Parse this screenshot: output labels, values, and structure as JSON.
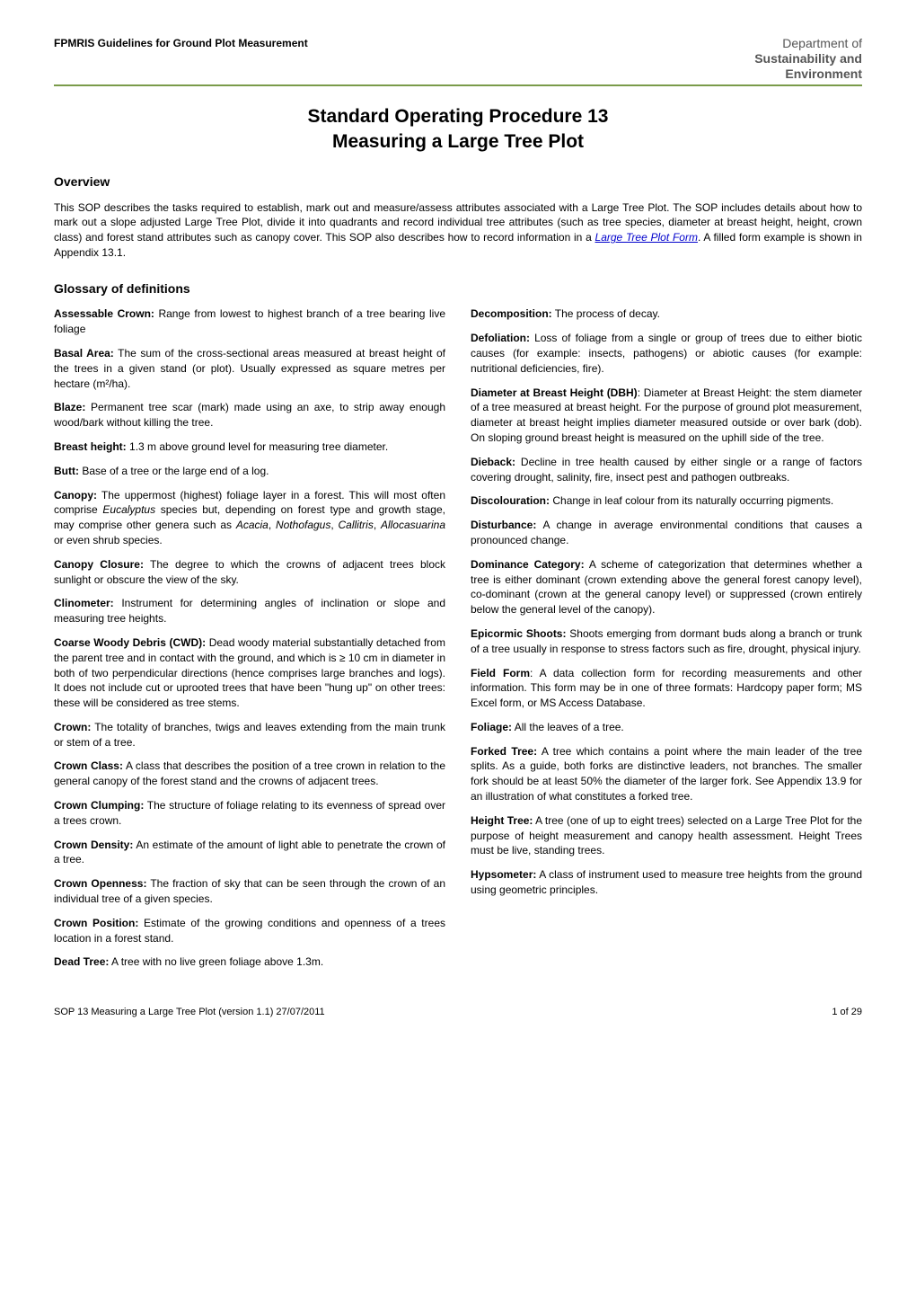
{
  "header": {
    "left": "FPMRIS Guidelines for Ground Plot Measurement",
    "dept_line1": "Department of",
    "dept_line2": "Sustainability and",
    "dept_line3": "Environment"
  },
  "title_line1": "Standard Operating Procedure 13",
  "title_line2": "Measuring a Large Tree Plot",
  "overview": {
    "heading": "Overview",
    "text_before_link": "This SOP describes the tasks required to establish, mark out and measure/assess attributes associated with a Large Tree Plot. The SOP includes details about how to mark out a slope adjusted Large Tree Plot, divide it into quadrants and record individual tree attributes (such as tree species, diameter at breast height, height, crown class) and forest stand attributes such as canopy cover.  This SOP also describes how to record information in a ",
    "link_text": "Large Tree Plot Form",
    "text_after_link": ". A filled form example is shown in Appendix 13.1."
  },
  "glossary_heading": "Glossary of definitions",
  "glossary_left": [
    {
      "term": "Assessable Crown:",
      "def": "  Range from lowest to highest branch of a tree bearing live foliage"
    },
    {
      "term": "Basal Area:",
      "def": " The sum of the cross-sectional areas measured at breast height of the trees in a given stand (or plot). Usually expressed as square metres per hectare (m²/ha)."
    },
    {
      "term": "Blaze:",
      "def": " Permanent tree scar (mark) made using an axe, to strip away enough wood/bark without killing the tree."
    },
    {
      "term": "Breast height:",
      "def": " 1.3 m above ground level for measuring tree diameter."
    },
    {
      "term": "Butt:",
      "def": " Base of a tree or the large end of a log."
    },
    {
      "term": "Canopy:",
      "def_html": " The uppermost (highest) foliage layer in a forest.  This will most often comprise <span class=\"italic\">Eucalyptus</span> species but, depending on forest type and growth stage, may comprise other genera such as <span class=\"italic\">Acacia</span>, <span class=\"italic\">Nothofagus</span>, <span class=\"italic\">Callitris</span>, <span class=\"italic\">Allocasuarina</span> or even shrub species."
    },
    {
      "term": "Canopy Closure:",
      "def": " The degree to which the crowns of adjacent trees block sunlight or obscure the view of the sky."
    },
    {
      "term": "Clinometer:",
      "def": " Instrument for determining angles of inclination or slope and measuring tree heights."
    },
    {
      "term": "Coarse Woody Debris (CWD):",
      "def": " Dead woody material substantially detached from the parent tree and in contact with the ground, and which is ≥ 10 cm in diameter in both of two perpendicular directions (hence comprises large branches and logs).  It does not include cut or uprooted trees that have been \"hung up\" on other trees: these will be considered as tree stems."
    },
    {
      "term": "Crown:",
      "def": " The totality of branches, twigs and leaves extending from the main trunk or stem of a tree."
    },
    {
      "term": "Crown Class:",
      "def": " A class that describes the position of a tree crown in relation to the general canopy of the forest stand and the crowns of adjacent trees."
    },
    {
      "term": "Crown Clumping:",
      "def": " The structure of foliage relating to its evenness of spread over a trees crown."
    },
    {
      "term": "Crown Density:",
      "def": " An estimate of the amount of light able to penetrate the crown of a tree."
    },
    {
      "term": "Crown Openness:",
      "def": "  The fraction of sky that can be seen through the crown of an individual tree of a given species."
    },
    {
      "term": "Crown Position:",
      "def": " Estimate of the growing conditions and openness of a trees location in a forest stand."
    },
    {
      "term": "Dead Tree:",
      "def": " A tree with no live green foliage above 1.3m."
    }
  ],
  "glossary_right": [
    {
      "term": "Decomposition:",
      "def": "  The process of decay."
    },
    {
      "term": "Defoliation:",
      "def": " Loss of foliage from a single or group of trees due to either biotic causes (for example: insects, pathogens) or abiotic causes (for example: nutritional deficiencies, fire)."
    },
    {
      "term": "Diameter at Breast Height (DBH)",
      "def": ": Diameter at Breast Height: the stem diameter of a tree measured at breast height. For the purpose of ground plot measurement, diameter at breast height implies diameter measured outside or over bark (dob). On sloping ground breast height is measured on the uphill side of the tree."
    },
    {
      "term": "Dieback:",
      "def": " Decline in tree health caused by either single or a range of factors covering drought, salinity, fire, insect pest and pathogen outbreaks."
    },
    {
      "term": "Discolouration:",
      "def": " Change in leaf colour from its naturally occurring pigments."
    },
    {
      "term": "Disturbance:",
      "def": "   A change in average environmental conditions that causes a pronounced change."
    },
    {
      "term": "Dominance Category:",
      "def": " A scheme of categorization that determines whether a tree is either dominant (crown extending above the general forest canopy level), co-dominant (crown at the general canopy level) or suppressed (crown entirely below the general level of the canopy)."
    },
    {
      "term": "Epicormic Shoots:",
      "def": " Shoots emerging from dormant buds along a branch or trunk of a tree usually in response to stress factors such as fire, drought, physical injury."
    },
    {
      "term": "Field Form",
      "def": ": A data collection form for recording measurements and other information. This form may be in one of three formats: Hardcopy paper form; MS Excel form, or MS Access Database."
    },
    {
      "term": "Foliage:",
      "def": " All the leaves of a tree."
    },
    {
      "term": "Forked Tree:",
      "def": " A tree which contains a point where the main leader of the tree splits. As a guide, both forks are distinctive leaders, not branches. The smaller fork should be at least 50% the diameter of the larger fork. See Appendix 13.9 for an illustration of what constitutes a forked tree."
    },
    {
      "term": "Height Tree:",
      "def": " A tree (one of up to eight trees) selected on a Large Tree Plot for the purpose of height measurement and canopy health assessment. Height Trees must be live, standing trees."
    },
    {
      "term": "Hypsometer:",
      "def": " A class of instrument used to measure tree heights from the ground using geometric principles."
    }
  ],
  "footer": {
    "left": "SOP 13 Measuring a Large Tree Plot (version 1.1)    27/07/2011",
    "right": "1 of 29"
  },
  "colors": {
    "accent_green": "#7a9b4a",
    "link_blue": "#0000cc",
    "dept_grey": "#555555"
  }
}
